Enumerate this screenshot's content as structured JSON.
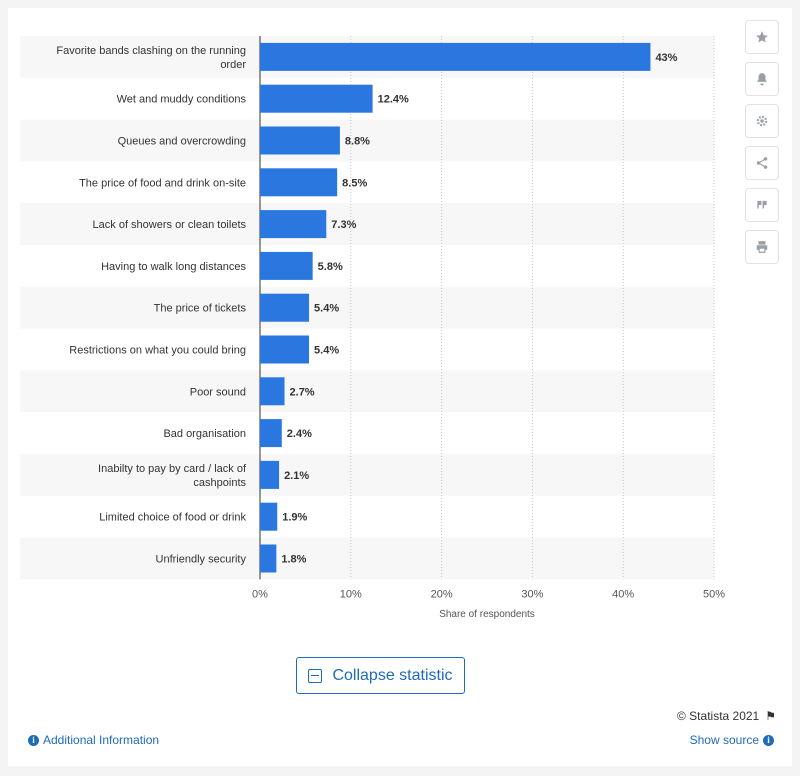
{
  "chart_data": {
    "type": "bar",
    "orientation": "horizontal",
    "categories": [
      "Favorite bands clashing on the running order",
      "Wet and muddy conditions",
      "Queues and overcrowding",
      "The price of food and drink on-site",
      "Lack of showers or clean toilets",
      "Having to walk long distances",
      "The price of tickets",
      "Restrictions on what you could bring",
      "Poor sound",
      "Bad organisation",
      "Inabilty to pay by card / lack of cashpoints",
      "Limited choice of food or drink",
      "Unfriendly security"
    ],
    "values": [
      43,
      12.4,
      8.8,
      8.5,
      7.3,
      5.8,
      5.4,
      5.4,
      2.7,
      2.4,
      2.1,
      1.9,
      1.8
    ],
    "value_labels": [
      "43%",
      "12.4%",
      "8.8%",
      "8.5%",
      "7.3%",
      "5.8%",
      "5.4%",
      "5.4%",
      "2.7%",
      "2.4%",
      "2.1%",
      "1.9%",
      "1.8%"
    ],
    "x_ticks": [
      "0%",
      "10%",
      "20%",
      "30%",
      "40%",
      "50%"
    ],
    "xlim": [
      0,
      50
    ],
    "xlabel": "Share of respondents",
    "grid": true,
    "bar_color": "#2a77e0"
  },
  "toolbar": {
    "collapse_label": "Collapse statistic",
    "icons": [
      "star-icon",
      "bell-icon",
      "gear-icon",
      "share-icon",
      "quote-icon",
      "print-icon"
    ]
  },
  "footer": {
    "copyright": "© Statista 2021",
    "additional_info": "Additional Information",
    "show_source": "Show source"
  }
}
